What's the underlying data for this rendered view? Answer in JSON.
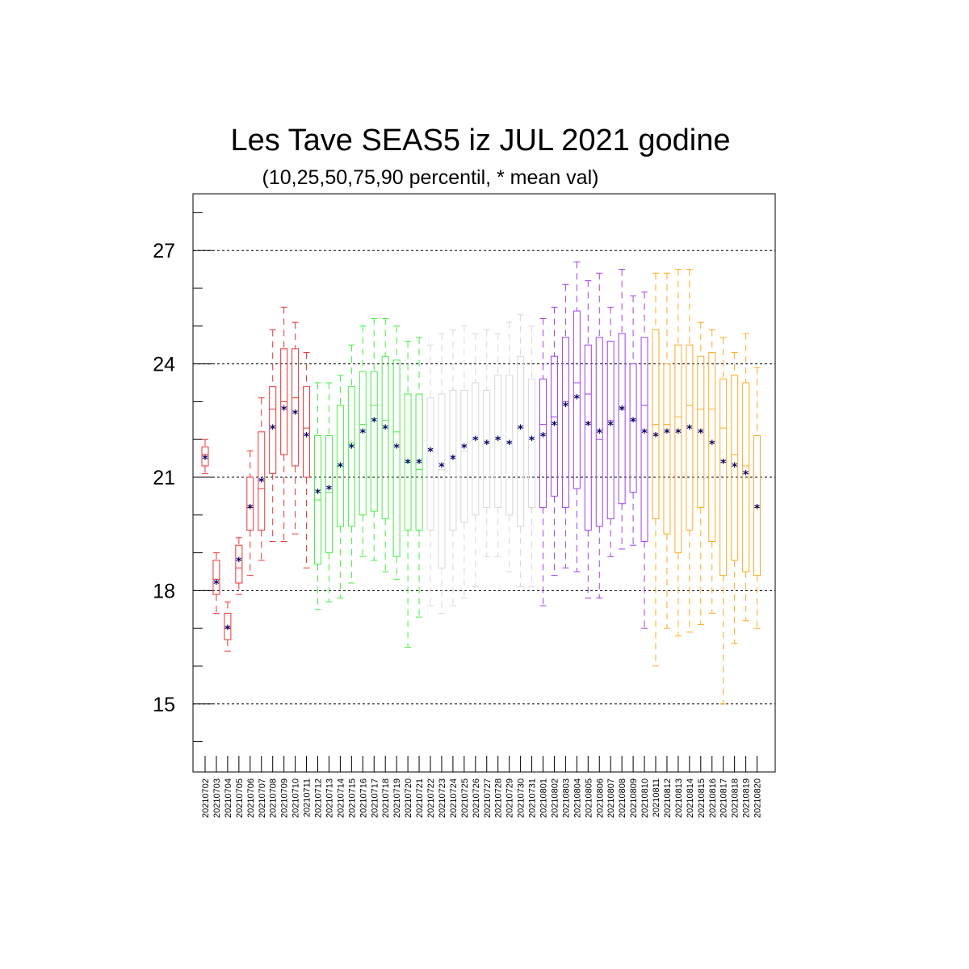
{
  "chart_data": {
    "type": "boxplot",
    "title": "Les Tave SEAS5 iz JUL 2021 godine",
    "subtitle": "(10,25,50,75,90 percentil, * mean val)",
    "ylim": [
      13.2,
      28.5
    ],
    "yticks": [
      15,
      18,
      21,
      24,
      27
    ],
    "grid": "horizontal dashed at major y ticks",
    "categories": [
      "20210702",
      "20210703",
      "20210704",
      "20210705",
      "20210706",
      "20210707",
      "20210708",
      "20210709",
      "20210710",
      "20210711",
      "20210712",
      "20210713",
      "20210714",
      "20210715",
      "20210716",
      "20210717",
      "20210718",
      "20210719",
      "20210720",
      "20210721",
      "20210722",
      "20210723",
      "20210724",
      "20210725",
      "20210726",
      "20210727",
      "20210728",
      "20210729",
      "20210730",
      "20210731",
      "20210801",
      "20210802",
      "20210803",
      "20210804",
      "20210805",
      "20210806",
      "20210807",
      "20210808",
      "20210809",
      "20210810",
      "20210811",
      "20210812",
      "20210813",
      "20210814",
      "20210815",
      "20210816",
      "20210817",
      "20210818",
      "20210819",
      "20210820"
    ],
    "colors": [
      "#ee3333",
      "#ee3333",
      "#ee3333",
      "#ee3333",
      "#ee3333",
      "#ee3333",
      "#ee3333",
      "#ee3333",
      "#ee3333",
      "#ee3333",
      "#44ee44",
      "#44ee44",
      "#44ee44",
      "#44ee44",
      "#44ee44",
      "#44ee44",
      "#44ee44",
      "#44ee44",
      "#44ee44",
      "#44ee44",
      "#d8d8d8",
      "#d8d8d8",
      "#d8d8d8",
      "#d8d8d8",
      "#d8d8d8",
      "#d8d8d8",
      "#d8d8d8",
      "#d8d8d8",
      "#d8d8d8",
      "#d8d8d8",
      "#a040ee",
      "#a040ee",
      "#a040ee",
      "#a040ee",
      "#a040ee",
      "#a040ee",
      "#a040ee",
      "#a040ee",
      "#a040ee",
      "#a040ee",
      "#ffaa22",
      "#ffaa22",
      "#ffaa22",
      "#ffaa22",
      "#ffaa22",
      "#ffaa22",
      "#ffaa22",
      "#ffaa22",
      "#ffaa22",
      "#ffaa22"
    ],
    "mean_color": "#000066",
    "p10": [
      21.1,
      17.4,
      16.4,
      17.9,
      18.4,
      18.8,
      19.3,
      19.3,
      19.5,
      18.6,
      17.5,
      17.7,
      17.8,
      18.2,
      18.9,
      18.8,
      18.5,
      18.3,
      16.5,
      17.3,
      17.6,
      17.4,
      17.6,
      17.8,
      18.1,
      18.9,
      18.9,
      18.5,
      18.1,
      18.1,
      17.6,
      18.4,
      18.6,
      18.5,
      17.8,
      17.8,
      18.9,
      19.1,
      19.2,
      17.0,
      16.0,
      17.0,
      16.8,
      16.9,
      17.1,
      17.4,
      15.0,
      16.6,
      17.2,
      17.0
    ],
    "p25": [
      21.3,
      17.9,
      16.7,
      18.2,
      19.6,
      19.6,
      21.1,
      21.6,
      21.3,
      21.0,
      18.7,
      19.0,
      19.7,
      19.7,
      20.0,
      20.1,
      19.9,
      18.9,
      19.6,
      19.6,
      19.6,
      18.6,
      19.6,
      19.8,
      20.0,
      20.2,
      20.2,
      20.0,
      19.7,
      20.2,
      20.2,
      20.5,
      20.2,
      20.7,
      19.6,
      19.7,
      19.9,
      20.3,
      20.6,
      19.3,
      19.9,
      19.5,
      19.0,
      19.6,
      20.2,
      19.3,
      18.4,
      18.8,
      18.5,
      18.4
    ],
    "p50": [
      21.6,
      18.3,
      17.0,
      18.6,
      20.2,
      20.7,
      22.8,
      23.0,
      23.1,
      22.3,
      20.4,
      20.6,
      21.3,
      21.9,
      22.4,
      22.9,
      22.5,
      22.2,
      21.4,
      21.2,
      21.7,
      21.2,
      21.5,
      21.7,
      22.0,
      21.9,
      22.0,
      21.9,
      22.3,
      22.0,
      22.4,
      22.6,
      23.0,
      23.5,
      23.2,
      22.0,
      22.5,
      22.8,
      22.5,
      22.9,
      22.4,
      22.4,
      22.6,
      22.9,
      22.8,
      22.8,
      22.3,
      21.6,
      21.3,
      20.2
    ],
    "p75": [
      21.8,
      18.8,
      17.4,
      19.2,
      21.0,
      22.2,
      23.4,
      24.4,
      24.4,
      23.4,
      22.1,
      22.1,
      22.9,
      23.4,
      23.8,
      23.8,
      24.2,
      24.1,
      23.2,
      23.2,
      23.1,
      23.2,
      23.3,
      23.3,
      23.5,
      23.3,
      23.7,
      23.7,
      24.2,
      23.6,
      23.6,
      24.2,
      24.7,
      25.4,
      24.5,
      24.7,
      24.6,
      24.8,
      24.0,
      24.7,
      24.9,
      24.0,
      24.5,
      24.5,
      24.2,
      24.3,
      23.6,
      23.7,
      23.5,
      22.1
    ],
    "p90": [
      22.0,
      19.0,
      17.7,
      19.4,
      21.7,
      23.1,
      24.9,
      25.5,
      25.1,
      24.3,
      23.5,
      23.5,
      23.7,
      24.5,
      25.0,
      25.2,
      25.2,
      25.0,
      24.6,
      24.7,
      24.5,
      24.8,
      24.9,
      25.0,
      24.8,
      24.9,
      24.8,
      25.1,
      25.3,
      25.0,
      25.2,
      25.5,
      26.1,
      26.7,
      26.2,
      26.4,
      25.5,
      26.5,
      25.8,
      25.9,
      26.4,
      26.4,
      26.5,
      26.5,
      25.1,
      24.9,
      24.7,
      24.3,
      24.8,
      23.9
    ],
    "mean": [
      21.5,
      18.2,
      17.0,
      18.8,
      20.2,
      20.9,
      22.3,
      22.8,
      22.7,
      22.1,
      20.6,
      20.7,
      21.3,
      21.8,
      22.2,
      22.5,
      22.3,
      21.8,
      21.4,
      21.4,
      21.7,
      21.3,
      21.5,
      21.8,
      22.0,
      21.9,
      22.0,
      21.9,
      22.3,
      22.0,
      22.1,
      22.4,
      22.9,
      23.1,
      22.4,
      22.2,
      22.4,
      22.8,
      22.5,
      22.2,
      22.1,
      22.2,
      22.2,
      22.3,
      22.2,
      21.9,
      21.4,
      21.3,
      21.1,
      20.2
    ]
  }
}
